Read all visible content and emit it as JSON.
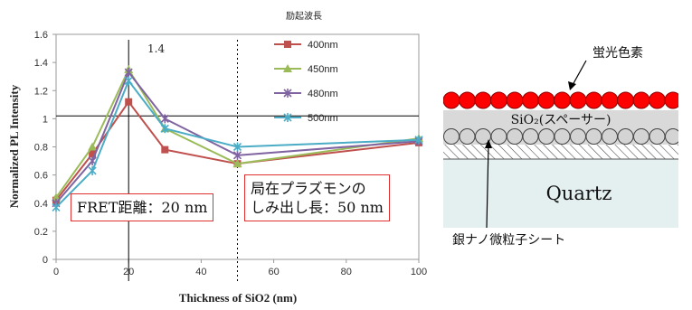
{
  "chart_data": {
    "type": "line",
    "xlabel": "Thickness of SiO2 (nm)",
    "ylabel": "Normalized PL Intensity",
    "xlim": [
      0,
      100
    ],
    "ylim": [
      0,
      1.6
    ],
    "x_ticks": [
      0,
      20,
      40,
      60,
      80,
      100
    ],
    "y_ticks": [
      "0",
      "0.2",
      "0.4",
      "0.6",
      "0.8",
      "1",
      "1.2",
      "1.4",
      "1.6"
    ],
    "legend_title": "励起波長",
    "legend_position": "top-right",
    "grid": false,
    "series": [
      {
        "name": "400nm",
        "color": "#c0504d",
        "marker": "square",
        "x": [
          0,
          10,
          20,
          30,
          50,
          100
        ],
        "y": [
          0.42,
          0.75,
          1.12,
          0.78,
          0.68,
          0.83
        ]
      },
      {
        "name": "450nm",
        "color": "#9bbb59",
        "marker": "triangle",
        "x": [
          0,
          10,
          20,
          30,
          50,
          100
        ],
        "y": [
          0.44,
          0.8,
          1.35,
          0.93,
          0.68,
          0.86
        ]
      },
      {
        "name": "480nm",
        "color": "#8064a2",
        "marker": "x",
        "x": [
          0,
          10,
          20,
          30,
          50,
          100
        ],
        "y": [
          0.4,
          0.7,
          1.33,
          1.0,
          0.74,
          0.84
        ]
      },
      {
        "name": "500nm",
        "color": "#4bacc6",
        "marker": "x",
        "x": [
          0,
          10,
          20,
          30,
          50,
          100
        ],
        "y": [
          0.37,
          0.63,
          1.27,
          0.93,
          0.8,
          0.85
        ]
      }
    ],
    "reference_lines": {
      "horizontal_y": 1.02,
      "vertical_solid_x": 20,
      "vertical_dotted_x": 50
    },
    "value_label": "1.4",
    "annotations": [
      {
        "text": "FRET距離：20 nm"
      },
      {
        "lines": [
          "局在プラズモンの",
          "しみ出し長：50 nm"
        ]
      }
    ]
  },
  "diagram": {
    "top_label": "蛍光色素",
    "spacer_label": "SiO₂(スペーサー)",
    "substrate_label": "Quartz",
    "bottom_label": "銀ナノ微粒子シート",
    "colors": {
      "dye": "#ff0000",
      "spacer": "#d9d9d9",
      "quartz": "#e4f0f0"
    }
  }
}
